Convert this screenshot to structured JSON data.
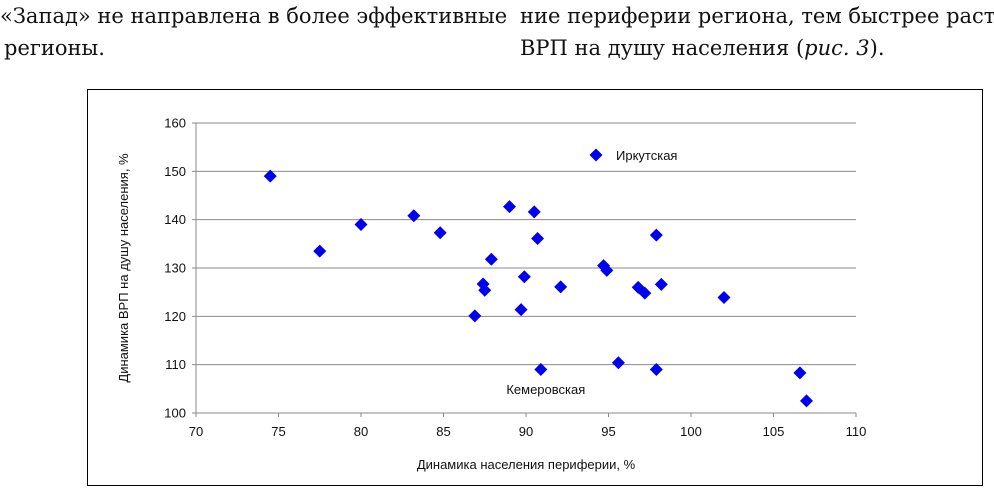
{
  "page_text": {
    "left_line1": "«Запад» не направлена в более эффективные",
    "left_line2": "регионы.",
    "right_line1": "ние периферии региона, тем быстрее растет",
    "right_line2_pre": "ВРП на душу населения (",
    "right_line2_ref": "рис. 3",
    "right_line2_post": ")."
  },
  "chart_data": {
    "type": "scatter",
    "xlabel": "Динамика населения периферии, %",
    "ylabel": "Динамика ВРП на душу населения, %",
    "xlim": [
      70,
      110
    ],
    "ylim": [
      100,
      160
    ],
    "xticks": [
      70,
      75,
      80,
      85,
      90,
      95,
      100,
      105,
      110
    ],
    "yticks": [
      100,
      110,
      120,
      130,
      140,
      150,
      160
    ],
    "grid": "horizontal",
    "marker": "diamond",
    "marker_color": "#0000EE",
    "legend": {
      "label": "Иркутская",
      "position": "top-right"
    },
    "annotations": [
      {
        "text": "Кемеровская",
        "x": 91.2,
        "y": 105
      }
    ],
    "points": [
      {
        "x": 74.5,
        "y": 149
      },
      {
        "x": 77.5,
        "y": 133.5
      },
      {
        "x": 80.0,
        "y": 139
      },
      {
        "x": 83.2,
        "y": 140.8
      },
      {
        "x": 84.8,
        "y": 137.3
      },
      {
        "x": 86.9,
        "y": 120.1
      },
      {
        "x": 87.4,
        "y": 126.7
      },
      {
        "x": 87.5,
        "y": 125.4
      },
      {
        "x": 87.9,
        "y": 131.8
      },
      {
        "x": 89.0,
        "y": 142.7
      },
      {
        "x": 89.7,
        "y": 121.4
      },
      {
        "x": 89.9,
        "y": 128.2
      },
      {
        "x": 90.5,
        "y": 141.6
      },
      {
        "x": 90.7,
        "y": 136.1
      },
      {
        "x": 90.9,
        "y": 109.0
      },
      {
        "x": 92.1,
        "y": 126.1
      },
      {
        "x": 94.7,
        "y": 130.5
      },
      {
        "x": 94.9,
        "y": 129.5
      },
      {
        "x": 95.6,
        "y": 110.4
      },
      {
        "x": 96.8,
        "y": 126.0
      },
      {
        "x": 97.2,
        "y": 124.8
      },
      {
        "x": 97.9,
        "y": 136.8
      },
      {
        "x": 97.9,
        "y": 109.0
      },
      {
        "x": 98.2,
        "y": 126.6
      },
      {
        "x": 102.0,
        "y": 123.9
      },
      {
        "x": 106.6,
        "y": 108.3
      },
      {
        "x": 107.0,
        "y": 102.5
      }
    ]
  }
}
